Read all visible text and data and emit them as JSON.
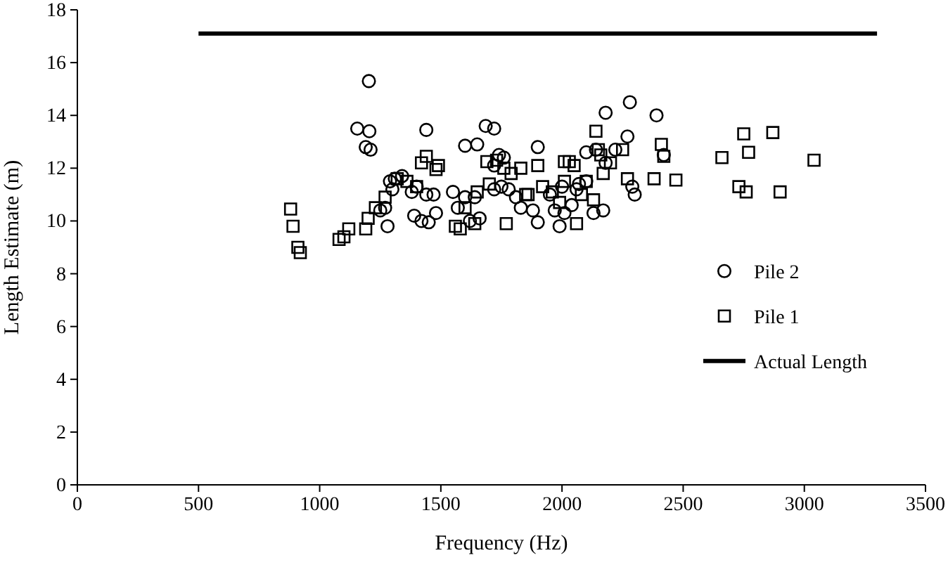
{
  "chart_data": {
    "type": "scatter",
    "xlabel": "Frequency (Hz)",
    "ylabel": "Length Estimate (m)",
    "xlim": [
      0,
      3500
    ],
    "ylim": [
      0,
      18
    ],
    "xticks": [
      0,
      500,
      1000,
      1500,
      2000,
      2500,
      3000,
      3500
    ],
    "yticks": [
      0,
      2,
      4,
      6,
      8,
      10,
      12,
      14,
      16,
      18
    ],
    "grid": false,
    "legend": "right",
    "series": [
      {
        "name": "Pile 2",
        "color": "#000000",
        "marker": "circle",
        "x": [
          1203,
          1155,
          1205,
          1190,
          1210,
          1440,
          1685,
          1720,
          1650,
          1600,
          1900,
          2180,
          2280,
          2390,
          2270,
          2420,
          2140,
          2220,
          2100,
          1340,
          1310,
          1300,
          1290,
          1380,
          1440,
          1400,
          1270,
          1250,
          1280,
          1390,
          1420,
          1450,
          1480,
          1470,
          1550,
          1600,
          1640,
          1570,
          1620,
          1660,
          1720,
          1750,
          1780,
          1810,
          1830,
          1880,
          1900,
          1970,
          1990,
          2010,
          2040,
          2070,
          2100,
          2130,
          2170,
          1720,
          1740,
          1760,
          1950,
          2000,
          2060,
          2300,
          2290,
          2180
        ],
        "values": [
          15.3,
          13.5,
          13.4,
          12.8,
          12.7,
          13.45,
          13.6,
          13.5,
          12.9,
          12.85,
          12.8,
          14.1,
          14.5,
          14.0,
          13.2,
          12.5,
          12.7,
          12.7,
          12.6,
          11.7,
          11.6,
          11.2,
          11.5,
          11.1,
          11.0,
          11.3,
          10.5,
          10.4,
          9.8,
          10.2,
          10.0,
          9.95,
          10.3,
          11.0,
          11.1,
          10.9,
          10.9,
          10.5,
          10.0,
          10.1,
          11.2,
          11.3,
          11.2,
          10.9,
          10.5,
          10.4,
          9.95,
          10.4,
          9.8,
          10.3,
          10.6,
          11.4,
          11.5,
          10.3,
          10.4,
          12.1,
          12.5,
          12.4,
          11.0,
          11.3,
          11.2,
          11.0,
          11.3,
          12.2
        ]
      },
      {
        "name": "Pile 1",
        "color": "#000000",
        "marker": "square",
        "x": [
          880,
          890,
          910,
          920,
          1080,
          1100,
          1120,
          1190,
          1200,
          1230,
          1270,
          1320,
          1360,
          1400,
          1420,
          1440,
          1480,
          1490,
          1560,
          1580,
          1600,
          1640,
          1650,
          1690,
          1700,
          1730,
          1760,
          1770,
          1790,
          1830,
          1860,
          1900,
          1920,
          1960,
          2010,
          2030,
          2050,
          2060,
          2080,
          2100,
          2130,
          2140,
          2150,
          2160,
          2170,
          2200,
          2250,
          2270,
          2380,
          2410,
          2420,
          2470,
          2660,
          2730,
          2750,
          2760,
          2770,
          2870,
          2900,
          3040,
          1850,
          1990,
          2010
        ],
        "values": [
          10.45,
          9.8,
          9.0,
          8.8,
          9.3,
          9.4,
          9.7,
          9.7,
          10.1,
          10.5,
          10.9,
          11.6,
          11.5,
          11.3,
          12.2,
          12.45,
          11.95,
          12.1,
          9.8,
          9.7,
          10.5,
          9.9,
          11.1,
          12.25,
          11.4,
          12.3,
          12.0,
          9.9,
          11.8,
          12.0,
          11.0,
          12.1,
          11.3,
          11.1,
          12.25,
          12.25,
          12.1,
          9.9,
          11.0,
          11.5,
          10.8,
          13.4,
          12.7,
          12.5,
          11.8,
          12.2,
          12.7,
          11.6,
          11.6,
          12.9,
          12.45,
          11.55,
          12.4,
          11.3,
          13.3,
          11.1,
          12.6,
          13.35,
          11.1,
          12.3,
          11.0,
          10.7,
          11.5
        ]
      },
      {
        "name": "Actual Length",
        "type": "line",
        "color": "#000000",
        "marker": "none",
        "line_style": "solid",
        "x": [
          500,
          3300
        ],
        "values": [
          17.1,
          17.1
        ]
      }
    ]
  }
}
